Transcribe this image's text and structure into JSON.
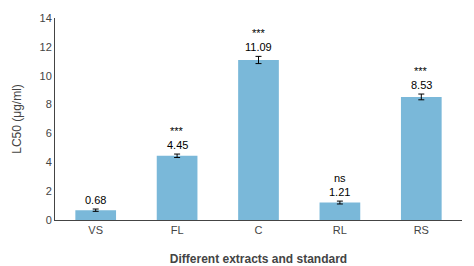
{
  "chart_data": {
    "type": "bar",
    "categories": [
      "VS",
      "FL",
      "C",
      "RL",
      "RS"
    ],
    "values": [
      0.68,
      4.45,
      11.09,
      1.21,
      8.53
    ],
    "errors": [
      0.08,
      0.12,
      0.25,
      0.1,
      0.2
    ],
    "color": "#7ab8d9",
    "data_labels": true,
    "annotations": [
      {
        "category": "FL",
        "text": "***"
      },
      {
        "category": "C",
        "text": "***"
      },
      {
        "category": "RL",
        "text": "ns"
      },
      {
        "category": "RS",
        "text": "***"
      }
    ],
    "xlabel": "Different extracts and standard",
    "ylabel": "LC50 (μg/ml)",
    "ylim": [
      0,
      14
    ],
    "yticks": [
      0,
      2,
      4,
      6,
      8,
      10,
      12,
      14
    ],
    "grid": false
  }
}
